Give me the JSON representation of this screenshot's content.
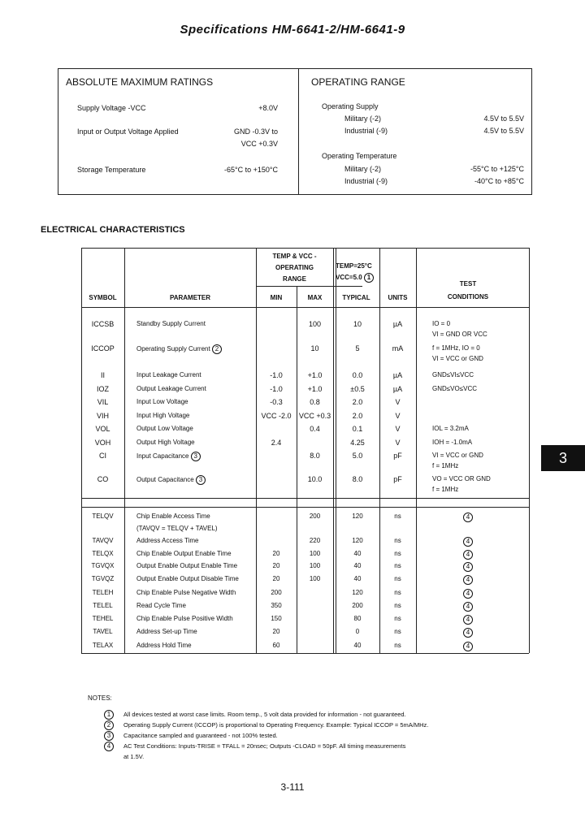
{
  "title": "Specifications HM-6641-2/HM-6641-9",
  "abs_max": {
    "heading": "ABSOLUTE MAXIMUM RATINGS",
    "items": [
      {
        "label": "Supply Voltage -VCC",
        "value": "+8.0V",
        "value2": ""
      },
      {
        "label": "Input or Output Voltage Applied",
        "value": "GND -0.3V to",
        "value2": "VCC +0.3V"
      },
      {
        "label": "Storage Temperature",
        "value": "-65°C to +150°C",
        "value2": ""
      }
    ]
  },
  "op_range": {
    "heading": "OPERATING RANGE",
    "supply_label": "Operating Supply",
    "supply": [
      {
        "label": "Military (-2)",
        "value": "4.5V to 5.5V"
      },
      {
        "label": "Industrial (-9)",
        "value": "4.5V to 5.5V"
      }
    ],
    "temp_label": "Operating Temperature",
    "temp": [
      {
        "label": "Military (-2)",
        "value": "-55°C to +125°C"
      },
      {
        "label": "Industrial (-9)",
        "value": "-40°C to +85°C"
      }
    ]
  },
  "elec": {
    "heading": "ELECTRICAL CHARACTERISTICS",
    "headers": {
      "temp_vcc": "TEMP & VCC -",
      "operating": "OPERATING",
      "range": "RANGE",
      "temp25": "TEMP=25°C",
      "vcc5": "VCC=5.0",
      "note_ref": "1",
      "symbol": "SYMBOL",
      "parameter": "PARAMETER",
      "min": "MIN",
      "max": "MAX",
      "typical": "TYPICAL",
      "units": "UNITS",
      "test": "TEST",
      "conditions": "CONDITIONS"
    },
    "dc_rows": [
      {
        "symbol": "ICCSB",
        "parameter": "Standby Supply Current",
        "note": "",
        "min": "",
        "max": "100",
        "typ": "10",
        "units": "µA",
        "cond": "IO = 0",
        "cond2": "VI = GND OR VCC"
      },
      {
        "symbol": "ICCOP",
        "parameter": "Operating Supply Current",
        "note": "2",
        "min": "",
        "max": "10",
        "typ": "5",
        "units": "mA",
        "cond": "f = 1MHz, IO = 0",
        "cond2": "VI = VCC or GND"
      },
      {
        "symbol": "II",
        "parameter": "Input Leakage Current",
        "note": "",
        "min": "-1.0",
        "max": "+1.0",
        "typ": "0.0",
        "units": "µA",
        "cond": "GND≤VI≤VCC",
        "cond2": ""
      },
      {
        "symbol": "IOZ",
        "parameter": "Output Leakage Current",
        "note": "",
        "min": "-1.0",
        "max": "+1.0",
        "typ": "±0.5",
        "units": "µA",
        "cond": "GND≤VO≤VCC",
        "cond2": ""
      },
      {
        "symbol": "VIL",
        "parameter": "Input Low Voltage",
        "note": "",
        "min": "-0.3",
        "max": "0.8",
        "typ": "2.0",
        "units": "V",
        "cond": "",
        "cond2": ""
      },
      {
        "symbol": "VIH",
        "parameter": "Input High Voltage",
        "note": "",
        "min": "VCC -2.0",
        "max": "VCC +0.3",
        "typ": "2.0",
        "units": "V",
        "cond": "",
        "cond2": ""
      },
      {
        "symbol": "VOL",
        "parameter": "Output Low Voltage",
        "note": "",
        "min": "",
        "max": "0.4",
        "typ": "0.1",
        "units": "V",
        "cond": "IOL = 3.2mA",
        "cond2": ""
      },
      {
        "symbol": "VOH",
        "parameter": "Output High Voltage",
        "note": "",
        "min": "2.4",
        "max": "",
        "typ": "4.25",
        "units": "V",
        "cond": "IOH = -1.0mA",
        "cond2": ""
      },
      {
        "symbol": "CI",
        "parameter": "Input Capacitance",
        "note": "3",
        "min": "",
        "max": "8.0",
        "typ": "5.0",
        "units": "pF",
        "cond": "VI = VCC or GND",
        "cond2": "f = 1MHz"
      },
      {
        "symbol": "CO",
        "parameter": "Output Capacitance",
        "note": "3",
        "min": "",
        "max": "10.0",
        "typ": "8.0",
        "units": "pF",
        "cond": "VO = VCC OR GND",
        "cond2": "f = 1MHz"
      }
    ],
    "ac_rows": [
      {
        "symbol": "TELQV",
        "parameter": "Chip Enable Access Time",
        "param2": "",
        "min": "",
        "max": "200",
        "typ": "120",
        "units": "ns",
        "note": "4"
      },
      {
        "symbol": "TAVQV",
        "parameter": "(TAVQV = TELQV + TAVEL)",
        "param2": "Address Access Time",
        "min": "",
        "max": "220",
        "typ": "120",
        "units": "ns",
        "note": "4"
      },
      {
        "symbol": "TELQX",
        "parameter": "Chip Enable Output Enable Time",
        "param2": "",
        "min": "20",
        "max": "100",
        "typ": "40",
        "units": "ns",
        "note": "4"
      },
      {
        "symbol": "TGVQX",
        "parameter": "Output Enable Output Enable Time",
        "param2": "",
        "min": "20",
        "max": "100",
        "typ": "40",
        "units": "ns",
        "note": "4"
      },
      {
        "symbol": "TGVQZ",
        "parameter": "Output Enable Output Disable Time",
        "param2": "",
        "min": "20",
        "max": "100",
        "typ": "40",
        "units": "ns",
        "note": "4"
      },
      {
        "symbol": "TELEH",
        "parameter": "Chip Enable Pulse Negative Width",
        "param2": "",
        "min": "200",
        "max": "",
        "typ": "120",
        "units": "ns",
        "note": "4"
      },
      {
        "symbol": "TELEL",
        "parameter": "Read Cycle Time",
        "param2": "",
        "min": "350",
        "max": "",
        "typ": "200",
        "units": "ns",
        "note": "4"
      },
      {
        "symbol": "TEHEL",
        "parameter": "Chip Enable Pulse Positive Width",
        "param2": "",
        "min": "150",
        "max": "",
        "typ": "80",
        "units": "ns",
        "note": "4"
      },
      {
        "symbol": "TAVEL",
        "parameter": "Address Set-up Time",
        "param2": "",
        "min": "20",
        "max": "",
        "typ": "0",
        "units": "ns",
        "note": "4"
      },
      {
        "symbol": "TELAX",
        "parameter": "Address Hold Time",
        "param2": "",
        "min": "60",
        "max": "",
        "typ": "40",
        "units": "ns",
        "note": "4"
      }
    ]
  },
  "notes": {
    "heading": "NOTES:",
    "items": [
      {
        "num": "1",
        "text": "All devices tested at worst case limits. Room temp., 5 volt data provided for information - not guaranteed."
      },
      {
        "num": "2",
        "text": "Operating Supply Current (ICCOP) is proportional to Operating Frequency. Example: Typical ICCOP = 5mA/MHz."
      },
      {
        "num": "3",
        "text": "Capacitance sampled and guaranteed - not 100% tested."
      },
      {
        "num": "4",
        "text": "AC Test Conditions: Inputs-TRISE = TFALL = 20nsec; Outputs -CLOAD = 50pF. All timing measurements"
      }
    ],
    "cont": "at 1.5V."
  },
  "section_tab": "3",
  "page_number": "3-111"
}
